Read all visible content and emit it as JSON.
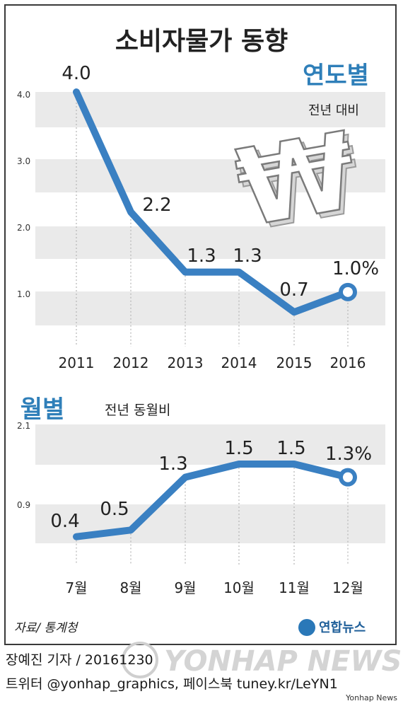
{
  "title": "소비자물가 동향",
  "source": "자료/ 통계청",
  "brand": "연합뉴스",
  "watermark": "YONHAP NEWS",
  "byline": "장예진 기자 / 20161230",
  "social": "트위터 @yonhap_graphics, 페이스북 tuney.kr/LeYN1",
  "credit": "Yonhap News",
  "colors": {
    "line": "#3a80c2",
    "accent": "#2f7fb9",
    "band": "#eaeaea",
    "text": "#222222"
  },
  "icon": "won-sign-icon",
  "chart_data": [
    {
      "type": "line",
      "title": "연도별",
      "subtitle": "전년 대비",
      "x": [
        "2011",
        "2012",
        "2013",
        "2014",
        "2015",
        "2016"
      ],
      "values": [
        4.0,
        2.2,
        1.3,
        1.3,
        0.7,
        1.0
      ],
      "labels": [
        "4.0",
        "2.2",
        "1.3",
        "1.3",
        "0.7",
        "1.0%"
      ],
      "yticks": [
        "4.0",
        "3.0",
        "2.0",
        "1.0"
      ],
      "ylim": [
        0.5,
        4.0
      ],
      "grid": "alternating-bands"
    },
    {
      "type": "line",
      "title": "월별",
      "subtitle": "전년 동월비",
      "x": [
        "7월",
        "8월",
        "9월",
        "10월",
        "11월",
        "12월"
      ],
      "values": [
        0.4,
        0.5,
        1.3,
        1.5,
        1.5,
        1.3
      ],
      "labels": [
        "0.4",
        "0.5",
        "1.3",
        "1.5",
        "1.5",
        "1.3%"
      ],
      "yticks": [
        "2.1",
        "0.9"
      ],
      "ylim": [
        0.3,
        2.1
      ],
      "grid": "alternating-bands"
    }
  ]
}
